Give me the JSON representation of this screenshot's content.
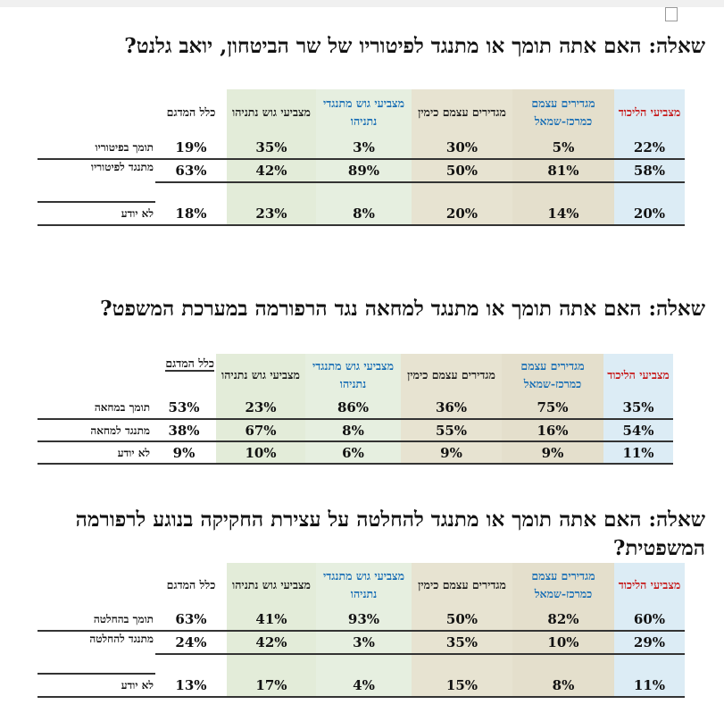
{
  "tables": [
    {
      "question": "שאלה: האם אתה תומך או מתנגד לפיטוריו של שר הביטחון, יואב גלנט?",
      "headers": {
        "likud": "מצביעי הליכוד",
        "center_left": "מגדירים עצמם כמרכז-שמאל",
        "right": "מגדירים עצמם כימין",
        "anti_netanyahu": "מצביעי גוש מתנגדי נתניהו",
        "netanyahu": "מצביעי גוש נתניהו",
        "all": "כלל המדגם"
      },
      "rows": [
        {
          "label": "תומך בפיטוריו",
          "likud": "22%",
          "center_left": "5%",
          "right": "30%",
          "anti_netanyahu": "3%",
          "netanyahu": "35%",
          "all": "19%"
        },
        {
          "label": "מתנגד לפיטוריו",
          "likud": "58%",
          "center_left": "81%",
          "right": "50%",
          "anti_netanyahu": "89%",
          "netanyahu": "42%",
          "all": "63%"
        },
        {
          "label": "לא יודע",
          "likud": "20%",
          "center_left": "14%",
          "right": "20%",
          "anti_netanyahu": "8%",
          "netanyahu": "23%",
          "all": "18%"
        }
      ]
    },
    {
      "question": "שאלה: האם אתה תומך או מתנגד למחאה נגד הרפורמה במערכת המשפט?",
      "headers": {
        "likud": "מצביעי הליכוד",
        "center_left": "מגדירים עצמם כמרכז-שמאל",
        "right": "מגדירים עצמם כימין",
        "anti_netanyahu": "מצביעי גוש מתנגדי נתניהו",
        "netanyahu": "מצביעי גוש נתניהו",
        "all": "כלל המדגם"
      },
      "rows": [
        {
          "label": "תומך במחאה",
          "likud": "35%",
          "center_left": "75%",
          "right": "36%",
          "anti_netanyahu": "86%",
          "netanyahu": "23%",
          "all": "53%"
        },
        {
          "label": "מתנגד למחאה",
          "likud": "54%",
          "center_left": "16%",
          "right": "55%",
          "anti_netanyahu": "8%",
          "netanyahu": "67%",
          "all": "38%"
        },
        {
          "label": "לא יודע",
          "likud": "11%",
          "center_left": "9%",
          "right": "9%",
          "anti_netanyahu": "6%",
          "netanyahu": "10%",
          "all": "9%"
        }
      ]
    },
    {
      "question": "שאלה: האם אתה תומך או מתנגד להחלטה על עצירת החקיקה בנוגע לרפורמה המשפטית?",
      "headers": {
        "likud": "מצביעי הליכוד",
        "center_left": "מגדירים עצמם כמרכז-שמאל",
        "right": "מגדירים עצמם כימין",
        "anti_netanyahu": "מצביעי גוש מתנגדי נתניהו",
        "netanyahu": "מצביעי גוש נתניהו",
        "all": "כלל המדגם"
      },
      "rows": [
        {
          "label": "תומך בהחלטה",
          "likud": "60%",
          "center_left": "82%",
          "right": "50%",
          "anti_netanyahu": "93%",
          "netanyahu": "41%",
          "all": "63%"
        },
        {
          "label": "מתנגד להחלטה",
          "likud": "29%",
          "center_left": "10%",
          "right": "35%",
          "anti_netanyahu": "3%",
          "netanyahu": "42%",
          "all": "24%"
        },
        {
          "label": "לא יודע",
          "likud": "11%",
          "center_left": "8%",
          "right": "15%",
          "anti_netanyahu": "4%",
          "netanyahu": "17%",
          "all": "13%"
        }
      ]
    }
  ]
}
